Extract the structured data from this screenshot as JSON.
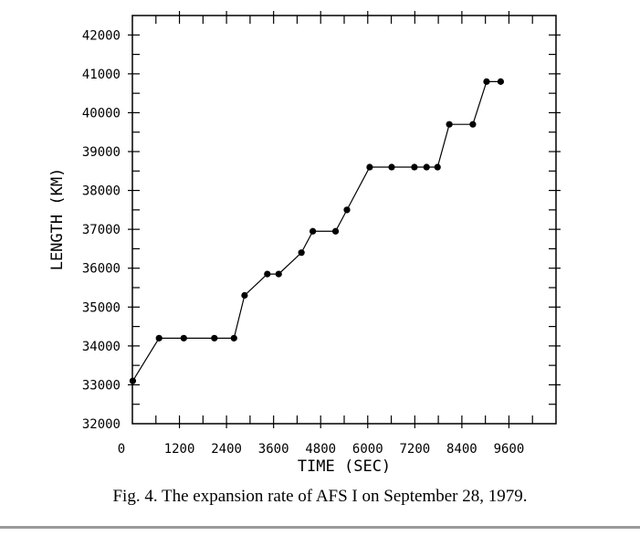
{
  "chart_data": {
    "type": "line",
    "xlabel": "TIME (SEC)",
    "ylabel": "LENGTH (KM)",
    "xlim": [
      0,
      10800
    ],
    "ylim": [
      32000,
      42500
    ],
    "x_ticks": [
      0,
      1200,
      2400,
      3600,
      4800,
      6000,
      7200,
      8400,
      9600
    ],
    "x_tick_labels": [
      "0",
      "1200",
      "2400",
      "3600",
      "4800",
      "6000",
      "7200",
      "8400",
      "9600"
    ],
    "y_ticks": [
      32000,
      33000,
      34000,
      35000,
      36000,
      37000,
      38000,
      39000,
      40000,
      41000,
      42000
    ],
    "y_tick_labels": [
      "32000",
      "33000",
      "34000",
      "35000",
      "36000",
      "37000",
      "38000",
      "39000",
      "40000",
      "41000",
      "42000"
    ],
    "grid": false,
    "series": [
      {
        "x": [
          10,
          680,
          1310,
          2090,
          2590,
          2860,
          3440,
          3730,
          4310,
          4600,
          5180,
          5470,
          6050,
          6610,
          7190,
          7500,
          7780,
          8080,
          8680,
          9030
        ],
        "y": [
          33100,
          34200,
          34200,
          34200,
          34200,
          35300,
          35850,
          35850,
          36400,
          36950,
          36950,
          37500,
          38600,
          38600,
          38600,
          38600,
          38600,
          39700,
          39700,
          40800
        ]
      }
    ],
    "points_extra": [
      {
        "x": 9390,
        "y": 40800
      }
    ]
  },
  "caption": "Fig. 4.   The expansion rate of AFS I on September 28, 1979."
}
